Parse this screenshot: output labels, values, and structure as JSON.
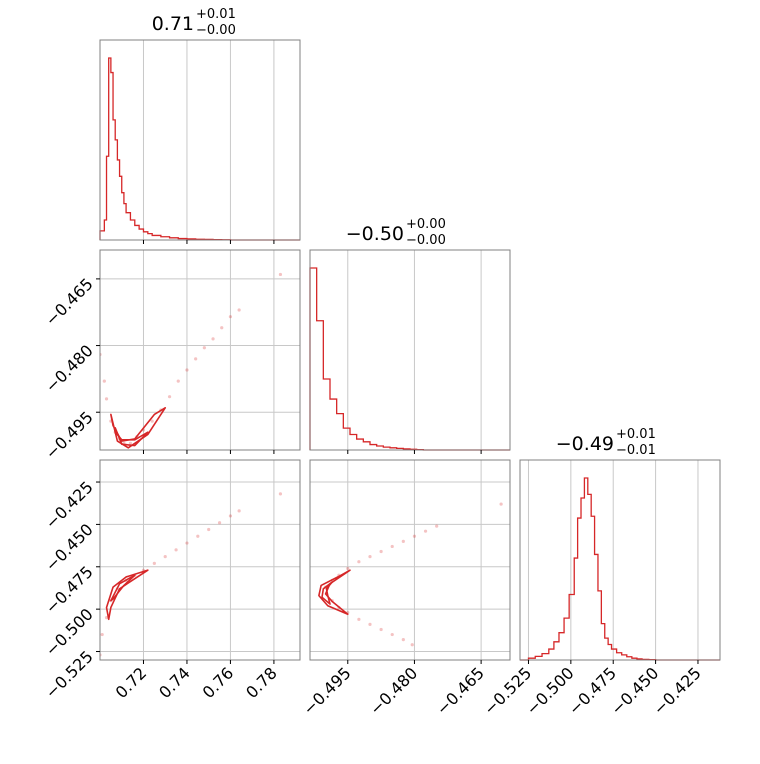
{
  "chart_data": {
    "type": "corner",
    "colors": {
      "series": "#d62728",
      "grid": "#c8c8c8",
      "frame": "#808080"
    },
    "grid": true,
    "parameters": [
      {
        "title": {
          "value": "0.71",
          "sup": "+0.01",
          "sub": "−0.00"
        },
        "range": [
          0.7,
          0.792
        ],
        "ticks": [
          0.72,
          0.74,
          0.76,
          0.78
        ],
        "tick_labels": [
          "0.72",
          "0.74",
          "0.76",
          "0.78"
        ]
      },
      {
        "title": {
          "value": "−0.50",
          "sup": "+0.00",
          "sub": "−0.00"
        },
        "range": [
          -0.5035,
          -0.4585
        ],
        "ticks": [
          -0.495,
          -0.48,
          -0.465
        ],
        "tick_labels": [
          "−0.495",
          "−0.480",
          "−0.465"
        ]
      },
      {
        "title": {
          "value": "−0.49",
          "sup": "+0.01",
          "sub": "−0.01"
        },
        "range": [
          -0.53,
          -0.412
        ],
        "ticks": [
          -0.525,
          -0.5,
          -0.475,
          -0.45,
          -0.425
        ],
        "tick_labels": [
          "−0.525",
          "−0.500",
          "−0.475",
          "−0.450",
          "−0.425"
        ]
      }
    ],
    "histograms": [
      {
        "param": 0,
        "edges": [
          0.7,
          0.702,
          0.703,
          0.704,
          0.705,
          0.706,
          0.707,
          0.708,
          0.709,
          0.71,
          0.711,
          0.712,
          0.714,
          0.716,
          0.718,
          0.72,
          0.722,
          0.724,
          0.728,
          0.732,
          0.736,
          0.74,
          0.744,
          0.748,
          0.752,
          0.756,
          0.76,
          0.792
        ],
        "counts": [
          0.05,
          0.11,
          0.46,
          1.0,
          0.92,
          0.66,
          0.55,
          0.44,
          0.35,
          0.26,
          0.2,
          0.15,
          0.11,
          0.08,
          0.06,
          0.045,
          0.035,
          0.025,
          0.018,
          0.012,
          0.008,
          0.006,
          0.004,
          0.003,
          0.002,
          0.001,
          0.0
        ]
      },
      {
        "param": 1,
        "edges": [
          -0.5035,
          -0.502,
          -0.5005,
          -0.499,
          -0.4975,
          -0.496,
          -0.4945,
          -0.493,
          -0.4915,
          -0.49,
          -0.4885,
          -0.487,
          -0.4855,
          -0.484,
          -0.4825,
          -0.481,
          -0.4795,
          -0.478,
          -0.4585
        ],
        "counts": [
          1.0,
          0.71,
          0.39,
          0.28,
          0.2,
          0.12,
          0.085,
          0.06,
          0.045,
          0.03,
          0.022,
          0.016,
          0.012,
          0.009,
          0.006,
          0.004,
          0.002,
          0.0
        ]
      },
      {
        "param": 2,
        "edges": [
          -0.53,
          -0.525,
          -0.521,
          -0.517,
          -0.513,
          -0.51,
          -0.507,
          -0.504,
          -0.501,
          -0.498,
          -0.496,
          -0.494,
          -0.492,
          -0.49,
          -0.488,
          -0.486,
          -0.484,
          -0.482,
          -0.48,
          -0.478,
          -0.476,
          -0.473,
          -0.47,
          -0.467,
          -0.464,
          -0.461,
          -0.458,
          -0.454,
          -0.45,
          -0.412
        ],
        "counts": [
          0.0,
          0.01,
          0.02,
          0.035,
          0.06,
          0.1,
          0.15,
          0.23,
          0.36,
          0.56,
          0.78,
          0.89,
          1.0,
          0.91,
          0.79,
          0.58,
          0.38,
          0.2,
          0.12,
          0.085,
          0.06,
          0.04,
          0.028,
          0.018,
          0.01,
          0.006,
          0.003,
          0.002,
          0.0
        ]
      }
    ],
    "scatter": [
      {
        "x_param": 0,
        "y_param": 1,
        "points": [
          [
            0.7,
            -0.482
          ],
          [
            0.702,
            -0.488
          ],
          [
            0.703,
            -0.492
          ],
          [
            0.705,
            -0.497
          ],
          [
            0.707,
            -0.4995
          ],
          [
            0.709,
            -0.501
          ],
          [
            0.711,
            -0.502
          ],
          [
            0.714,
            -0.502
          ],
          [
            0.717,
            -0.5005
          ],
          [
            0.72,
            -0.499
          ],
          [
            0.724,
            -0.497
          ],
          [
            0.728,
            -0.4945
          ],
          [
            0.732,
            -0.4915
          ],
          [
            0.736,
            -0.488
          ],
          [
            0.74,
            -0.4855
          ],
          [
            0.744,
            -0.483
          ],
          [
            0.748,
            -0.4805
          ],
          [
            0.752,
            -0.4785
          ],
          [
            0.756,
            -0.476
          ],
          [
            0.76,
            -0.4735
          ],
          [
            0.764,
            -0.472
          ],
          [
            0.783,
            -0.464
          ]
        ],
        "contours": [
          [
            [
              0.705,
              -0.4955
            ],
            [
              0.708,
              -0.5015
            ],
            [
              0.713,
              -0.503
            ],
            [
              0.722,
              -0.5
            ],
            [
              0.73,
              -0.494
            ],
            [
              0.725,
              -0.4955
            ],
            [
              0.716,
              -0.501
            ],
            [
              0.71,
              -0.5015
            ],
            [
              0.706,
              -0.498
            ]
          ],
          [
            [
              0.707,
              -0.4985
            ],
            [
              0.71,
              -0.5022
            ],
            [
              0.716,
              -0.5025
            ],
            [
              0.722,
              -0.4995
            ],
            [
              0.716,
              -0.5012
            ],
            [
              0.71,
              -0.5012
            ],
            [
              0.707,
              -0.4995
            ]
          ]
        ]
      },
      {
        "x_param": 0,
        "y_param": 2,
        "points": [
          [
            0.7,
            -0.527
          ],
          [
            0.701,
            -0.515
          ],
          [
            0.703,
            -0.505
          ],
          [
            0.705,
            -0.495
          ],
          [
            0.708,
            -0.488
          ],
          [
            0.712,
            -0.483
          ],
          [
            0.716,
            -0.48
          ],
          [
            0.72,
            -0.477
          ],
          [
            0.725,
            -0.473
          ],
          [
            0.73,
            -0.469
          ],
          [
            0.735,
            -0.465
          ],
          [
            0.74,
            -0.461
          ],
          [
            0.745,
            -0.457
          ],
          [
            0.75,
            -0.453
          ],
          [
            0.755,
            -0.449
          ],
          [
            0.76,
            -0.445
          ],
          [
            0.764,
            -0.442
          ],
          [
            0.783,
            -0.432
          ]
        ],
        "contours": [
          [
            [
              0.703,
              -0.499
            ],
            [
              0.706,
              -0.487
            ],
            [
              0.712,
              -0.481
            ],
            [
              0.722,
              -0.477
            ],
            [
              0.716,
              -0.482
            ],
            [
              0.709,
              -0.488
            ],
            [
              0.705,
              -0.499
            ],
            [
              0.704,
              -0.506
            ]
          ],
          [
            [
              0.705,
              -0.495
            ],
            [
              0.709,
              -0.485
            ],
            [
              0.716,
              -0.48
            ],
            [
              0.711,
              -0.486
            ],
            [
              0.706,
              -0.494
            ]
          ]
        ]
      },
      {
        "x_param": 1,
        "y_param": 2,
        "points": [
          [
            -0.5,
            -0.487
          ],
          [
            -0.4985,
            -0.483
          ],
          [
            -0.497,
            -0.48
          ],
          [
            -0.495,
            -0.476
          ],
          [
            -0.4925,
            -0.472
          ],
          [
            -0.49,
            -0.469
          ],
          [
            -0.4875,
            -0.466
          ],
          [
            -0.485,
            -0.463
          ],
          [
            -0.4825,
            -0.46
          ],
          [
            -0.48,
            -0.457
          ],
          [
            -0.4775,
            -0.454
          ],
          [
            -0.475,
            -0.451
          ],
          [
            -0.4985,
            -0.495
          ],
          [
            -0.497,
            -0.499
          ],
          [
            -0.495,
            -0.502
          ],
          [
            -0.4925,
            -0.506
          ],
          [
            -0.49,
            -0.509
          ],
          [
            -0.4875,
            -0.512
          ],
          [
            -0.485,
            -0.515
          ],
          [
            -0.4825,
            -0.518
          ],
          [
            -0.4805,
            -0.521
          ],
          [
            -0.4605,
            -0.438
          ]
        ],
        "contours": [
          [
            [
              -0.4965,
              -0.48
            ],
            [
              -0.501,
              -0.486
            ],
            [
              -0.5015,
              -0.492
            ],
            [
              -0.4995,
              -0.498
            ],
            [
              -0.495,
              -0.503
            ],
            [
              -0.4985,
              -0.4955
            ],
            [
              -0.5,
              -0.491
            ],
            [
              -0.499,
              -0.485
            ],
            [
              -0.4945,
              -0.477
            ]
          ],
          [
            [
              -0.4985,
              -0.484
            ],
            [
              -0.5005,
              -0.488
            ],
            [
              -0.5008,
              -0.493
            ],
            [
              -0.499,
              -0.497
            ],
            [
              -0.4995,
              -0.492
            ],
            [
              -0.4998,
              -0.488
            ]
          ]
        ]
      }
    ]
  }
}
